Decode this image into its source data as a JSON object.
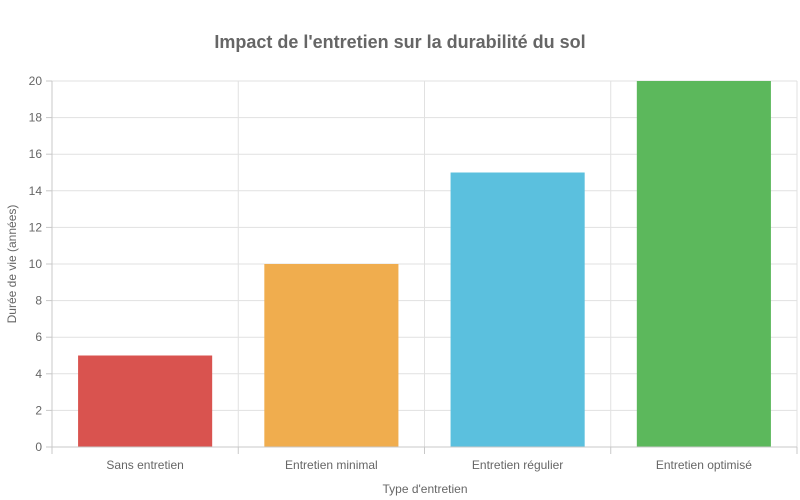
{
  "chart_data": {
    "type": "bar",
    "title": "Impact de l'entretien sur la durabilité du sol",
    "xlabel": "Type d'entretien",
    "ylabel": "Durée de vie (années)",
    "categories": [
      "Sans entretien",
      "Entretien minimal",
      "Entretien régulier",
      "Entretien optimisé"
    ],
    "values": [
      5,
      10,
      15,
      20
    ],
    "colors": [
      "#d9534f",
      "#f0ad4e",
      "#5bc0de",
      "#5cb85c"
    ],
    "ylim": [
      0,
      20
    ],
    "yticks": [
      "0",
      "2",
      "4",
      "6",
      "8",
      "10",
      "12",
      "14",
      "16",
      "18",
      "20"
    ],
    "grid": true,
    "legend": "none"
  }
}
